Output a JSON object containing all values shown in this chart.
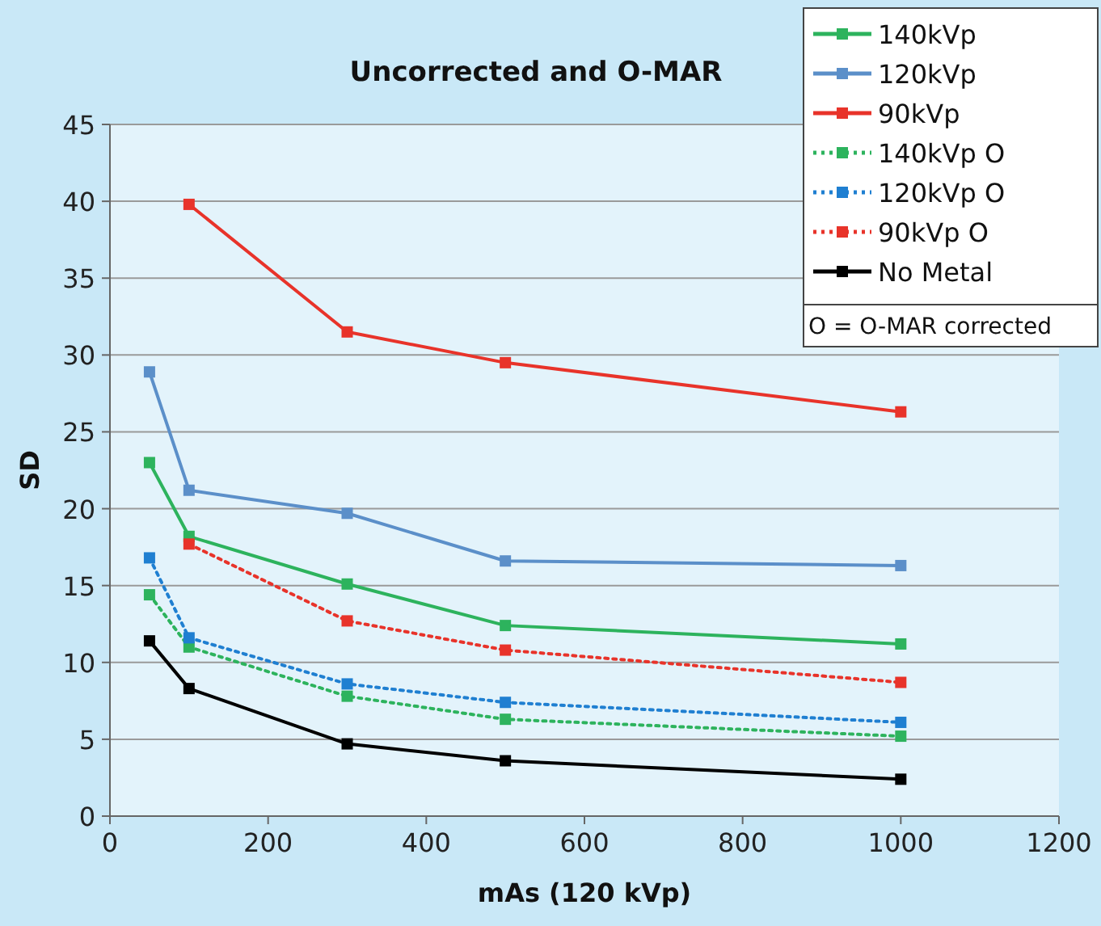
{
  "chart_data": {
    "type": "line",
    "title": "Uncorrected and O-MAR",
    "xlabel": "mAs (120 kVp)",
    "ylabel": "SD",
    "xlim": [
      0,
      1200
    ],
    "xticks": [
      0,
      200,
      400,
      600,
      800,
      1000,
      1200
    ],
    "ylim": [
      0,
      45
    ],
    "yticks": [
      0,
      5,
      10,
      15,
      20,
      25,
      30,
      35,
      40,
      45
    ],
    "grid": "y",
    "legend": "top right",
    "marker": "square",
    "annotations": [
      "O = O-MAR corrected"
    ],
    "series": [
      {
        "name": "140kVp",
        "color": "#2db35d",
        "line_style": "solid",
        "x": [
          50,
          100,
          300,
          500,
          1000
        ],
        "values": [
          23.0,
          18.2,
          15.1,
          12.4,
          11.2
        ]
      },
      {
        "name": "120kVp",
        "color": "#5b8fc9",
        "line_style": "solid",
        "x": [
          50,
          100,
          300,
          500,
          1000
        ],
        "values": [
          28.9,
          21.2,
          19.7,
          16.6,
          16.3
        ]
      },
      {
        "name": "90kVp",
        "color": "#e8332a",
        "line_style": "solid",
        "x": [
          100,
          300,
          500,
          1000
        ],
        "values": [
          39.8,
          31.5,
          29.5,
          26.3
        ]
      },
      {
        "name": "140kVp O",
        "color": "#2db35d",
        "line_style": "dotted",
        "x": [
          50,
          100,
          300,
          500,
          1000
        ],
        "values": [
          14.4,
          11.0,
          7.8,
          6.3,
          5.2
        ]
      },
      {
        "name": "120kVp O",
        "color": "#1f7fd1",
        "line_style": "dotted",
        "x": [
          50,
          100,
          300,
          500,
          1000
        ],
        "values": [
          16.8,
          11.6,
          8.6,
          7.4,
          6.1
        ]
      },
      {
        "name": "90kVp O",
        "color": "#e8332a",
        "line_style": "dotted",
        "x": [
          100,
          300,
          500,
          1000
        ],
        "values": [
          17.7,
          12.7,
          10.8,
          8.7
        ]
      },
      {
        "name": "No Metal",
        "color": "#000000",
        "line_style": "solid",
        "x": [
          50,
          100,
          300,
          500,
          1000
        ],
        "values": [
          11.4,
          8.3,
          4.7,
          3.6,
          2.4
        ]
      }
    ]
  }
}
